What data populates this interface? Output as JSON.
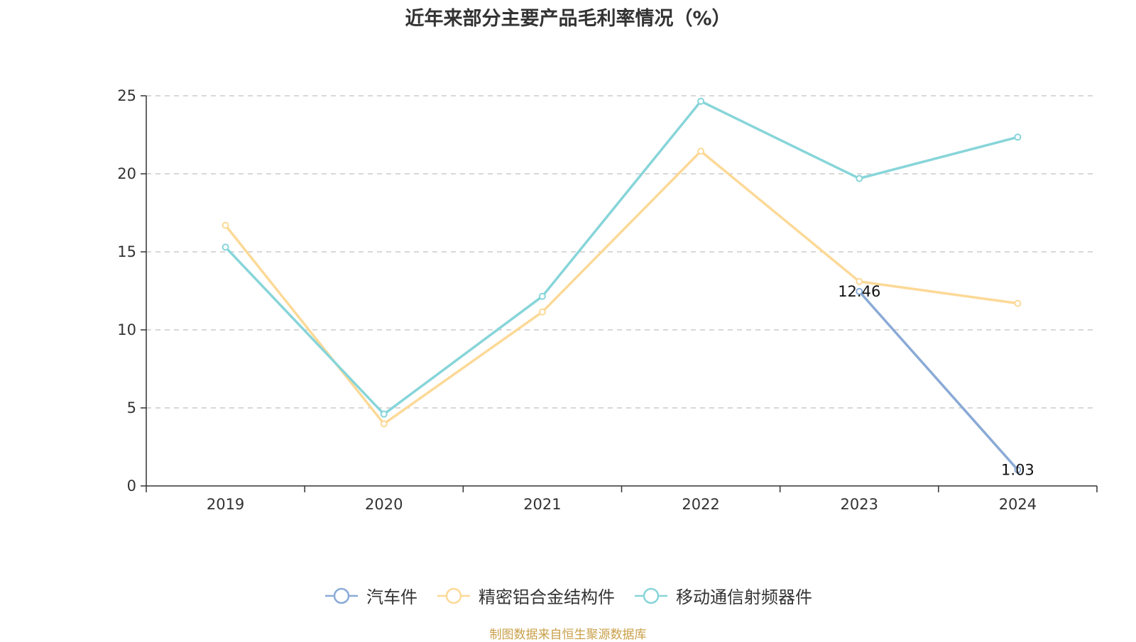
{
  "chart_data": {
    "type": "line",
    "title": "近年来部分主要产品毛利率情况（%）",
    "categories": [
      "2019",
      "2020",
      "2021",
      "2022",
      "2023",
      "2024"
    ],
    "ylim": [
      0,
      25
    ],
    "y_ticks": [
      "0",
      "5",
      "10",
      "15",
      "20",
      "25"
    ],
    "grid": true,
    "legend_position": "bottom",
    "series": [
      {
        "name": "汽车件",
        "color": "#8aaad6",
        "values": [
          null,
          null,
          null,
          null,
          12.46,
          1.03
        ],
        "labels": [
          null,
          null,
          null,
          null,
          "12.46",
          "1.03"
        ]
      },
      {
        "name": "精密铝合金结构件",
        "color": "#fcd997",
        "values": [
          16.7,
          3.98,
          11.15,
          21.45,
          13.1,
          11.7
        ]
      },
      {
        "name": "移动通信射频器件",
        "color": "#87d5d9",
        "values": [
          15.3,
          4.6,
          12.15,
          24.65,
          19.7,
          22.35
        ]
      }
    ]
  },
  "source_note": "制图数据来自恒生聚源数据库"
}
